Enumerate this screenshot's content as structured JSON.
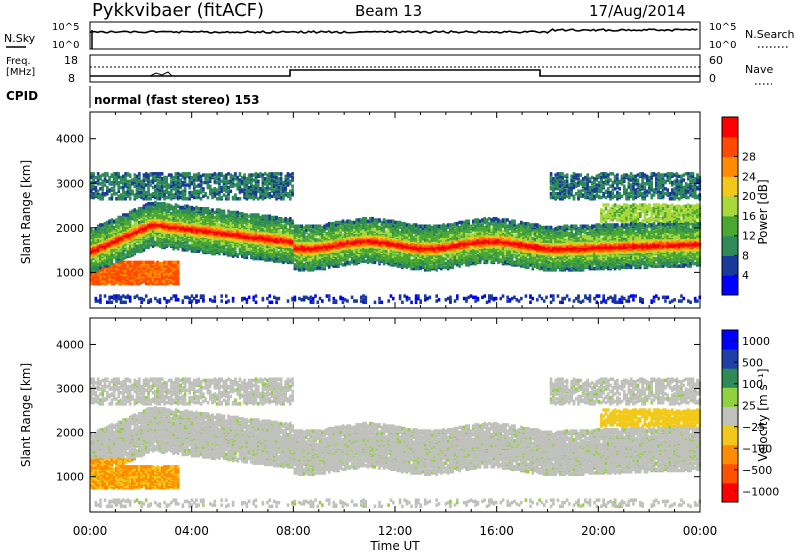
{
  "header": {
    "title": "Pykkvibaer (fitACF)",
    "beam": "Beam 13",
    "date": "17/Aug/2014"
  },
  "panels": {
    "nsky": {
      "label": "N.Sky",
      "right_label": "N.Search",
      "ticks": [
        "10^5",
        "10^0"
      ],
      "right_ticks": [
        "10^5",
        "10^0"
      ]
    },
    "freq": {
      "label_1": "Freq.",
      "label_2": "[MHz]",
      "right_label": "Nave",
      "ticks": [
        "18",
        "8"
      ],
      "right_ticks": [
        "60",
        "0"
      ]
    },
    "cpid": {
      "label": "CPID",
      "text": "normal (fast stereo) 153"
    }
  },
  "colors": {
    "power_scale": [
      "#0000ff",
      "#1a3a9a",
      "#2e8b57",
      "#4aa832",
      "#a8d83a",
      "#f2c91a",
      "#ff8c00",
      "#ff4a00",
      "#ff0000"
    ],
    "velocity_scale": [
      "#0000ff",
      "#1f3fa8",
      "#2e8b57",
      "#8fd13f",
      "#c0c0bc",
      "#f2c91a",
      "#ff8c00",
      "#ff5000",
      "#ff0000"
    ],
    "background_scatter": "#c0c0bc"
  },
  "chart_data": [
    {
      "type": "heatmap",
      "title": "",
      "xlabel": "",
      "ylabel": "Slant Range [km]",
      "x_ticks": [
        "00:00",
        "04:00",
        "08:00",
        "12:00",
        "16:00",
        "20:00",
        "00:00"
      ],
      "y_ticks": [
        "1000",
        "2000",
        "3000",
        "4000"
      ],
      "ylim": [
        200,
        4600
      ],
      "xlim_hours": [
        0,
        24
      ],
      "colorbar_label": "Power [dB]",
      "colorbar_ticks": [
        "4",
        "8",
        "12",
        "16",
        "20",
        "24",
        "28"
      ],
      "colorbar_range": [
        0,
        30
      ]
    },
    {
      "type": "heatmap",
      "title": "",
      "xlabel": "Time UT",
      "ylabel": "Slant Range [km]",
      "x_ticks": [
        "00:00",
        "04:00",
        "08:00",
        "12:00",
        "16:00",
        "20:00",
        "00:00"
      ],
      "y_ticks": [
        "1000",
        "2000",
        "3000",
        "4000"
      ],
      "ylim": [
        200,
        4600
      ],
      "xlim_hours": [
        0,
        24
      ],
      "colorbar_label": "Velocity [m s⁻¹]",
      "colorbar_ticks": [
        "1000",
        "500",
        "100",
        "25",
        "−25",
        "−100",
        "−500",
        "−1000"
      ]
    }
  ]
}
